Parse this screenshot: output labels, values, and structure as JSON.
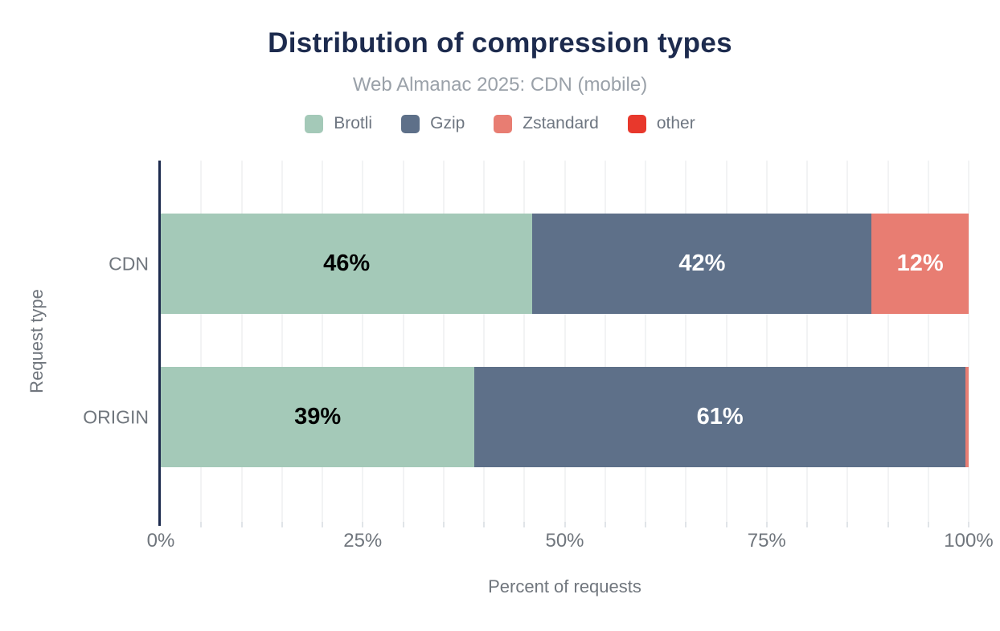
{
  "chart_data": {
    "type": "bar",
    "orientation": "horizontal",
    "stacked": true,
    "title": "Distribution of compression types",
    "subtitle": "Web Almanac 2025: CDN (mobile)",
    "xlabel": "Percent of requests",
    "ylabel": "Request type",
    "categories": [
      "CDN",
      "ORIGIN"
    ],
    "series": [
      {
        "name": "Brotli",
        "color": "#a4c9b8",
        "label_color": "#000000",
        "values": [
          46,
          39
        ],
        "labels": [
          "46%",
          "39%"
        ]
      },
      {
        "name": "Gzip",
        "color": "#5e7089",
        "label_color": "#ffffff",
        "values": [
          42,
          61
        ],
        "labels": [
          "42%",
          "61%"
        ]
      },
      {
        "name": "Zstandard",
        "color": "#e87d72",
        "label_color": "#ffffff",
        "values": [
          12,
          0.4
        ],
        "labels": [
          "12%",
          ""
        ]
      },
      {
        "name": "other",
        "color": "#e8382c",
        "label_color": "#ffffff",
        "values": [
          0,
          0
        ],
        "labels": [
          "",
          ""
        ]
      }
    ],
    "x_ticks": [
      {
        "label": "0%",
        "value": 0
      },
      {
        "label": "25%",
        "value": 25
      },
      {
        "label": "50%",
        "value": 50
      },
      {
        "label": "75%",
        "value": 75
      },
      {
        "label": "100%",
        "value": 100
      }
    ],
    "xlim": [
      0,
      100
    ],
    "grid_interval": 5,
    "grid": true,
    "legend_position": "top",
    "axis_color": "#1d2b4e"
  }
}
